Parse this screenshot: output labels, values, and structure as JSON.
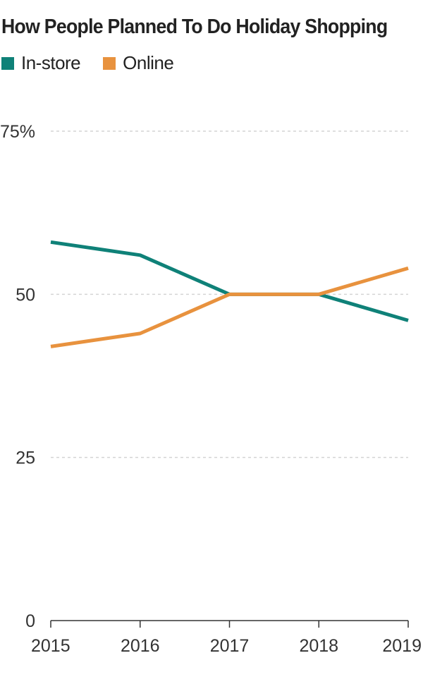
{
  "chart_data": {
    "type": "line",
    "title": "How People Planned To Do Holiday Shopping",
    "xlabel": "",
    "ylabel": "",
    "x": [
      "2015",
      "2016",
      "2017",
      "2018",
      "2019"
    ],
    "series": [
      {
        "name": "In-store",
        "color": "#0f8178",
        "values": [
          58,
          56,
          50,
          50,
          46
        ]
      },
      {
        "name": "Online",
        "color": "#e8923e",
        "values": [
          42,
          44,
          50,
          50,
          54
        ]
      }
    ],
    "ylim": [
      0,
      75
    ],
    "yticks": [
      0,
      25,
      50,
      75
    ],
    "ytick_labels": [
      "0",
      "25",
      "50",
      "75%"
    ],
    "grid": true,
    "legend_position": "top-left"
  }
}
